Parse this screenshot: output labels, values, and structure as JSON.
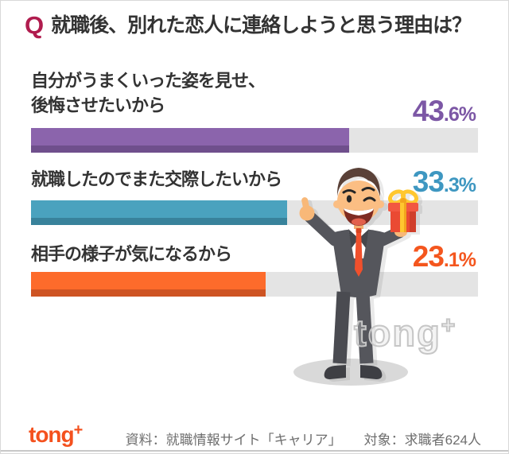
{
  "title": {
    "q_mark": "Q",
    "text": "就職後、別れた恋人に連絡しようと思う理由は？"
  },
  "chart_data": {
    "type": "bar",
    "orientation": "horizontal",
    "unit": "%",
    "title": "就職後、別れた恋人に連絡しようと思う理由は？",
    "categories": [
      "自分がうまくいった姿を見せ、後悔させたいから",
      "就職したのでまた交際したいから",
      "相手の様子が気になるから"
    ],
    "values": [
      43.6,
      33.3,
      23.1
    ],
    "value_labels": [
      "43.6%",
      "33.3%",
      "23.1%"
    ],
    "bar_colors": [
      "#8B64AC",
      "#4AA2BE",
      "#FD6B2B"
    ],
    "track_color": "#E4E4E4",
    "xlim": [
      0,
      100
    ],
    "grid": false,
    "legend": false
  },
  "bars": [
    {
      "lines": [
        "自分がうまくいった姿を見せ、",
        "後悔させたいから"
      ],
      "value_main": "43",
      "value_sub": ".6",
      "percent": "%",
      "fill_pct": 71.2,
      "color": "#8B64AC",
      "color_dark": "#6F4F8C",
      "text_color": "#7C57A5"
    },
    {
      "lines": [
        "就職したのでまた交際したいから"
      ],
      "value_main": "33",
      "value_sub": ".3",
      "percent": "%",
      "fill_pct": 57.3,
      "color": "#4AA2BE",
      "color_dark": "#38829B",
      "text_color": "#3E97C1"
    },
    {
      "lines": [
        "相手の様子が気になるから"
      ],
      "value_main": "23",
      "value_sub": ".1",
      "percent": "%",
      "fill_pct": 52.5,
      "color": "#FD6B2B",
      "color_dark": "#CE5423",
      "text_color": "#F4561E"
    }
  ],
  "watermark": {
    "text": "tong",
    "plus": "+"
  },
  "footer": {
    "logo_text": "tong",
    "logo_plus": "+",
    "logo_color": "#F4511E",
    "source": "資料：就職情報サイト「キャリア」",
    "sample": "対象：求職者624人"
  }
}
